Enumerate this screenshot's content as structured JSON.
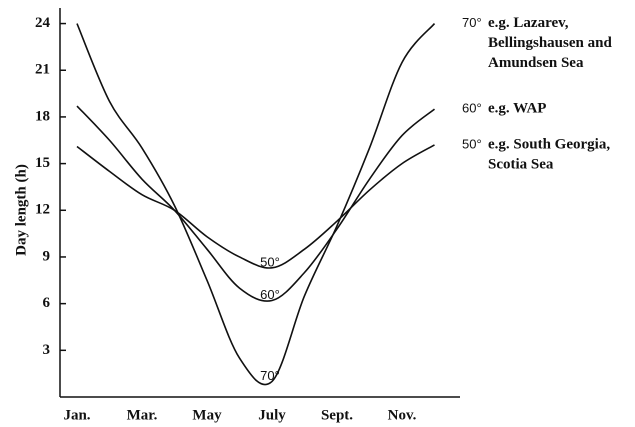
{
  "chart_data": {
    "type": "line",
    "y_label": "Day length (h)",
    "categories": [
      "Jan.",
      null,
      "Mar.",
      null,
      "May",
      null,
      "July",
      null,
      "Sept.",
      null,
      "Nov.",
      null
    ],
    "series": [
      {
        "name": "70°",
        "color": "#111111",
        "note": [
          "e.g. Lazarev,",
          "Bellingshausen and",
          "Amundsen Sea"
        ],
        "values": [
          24,
          19,
          16,
          12.3,
          7.5,
          2.5,
          1,
          6.5,
          11,
          16,
          21.5,
          24
        ]
      },
      {
        "name": "60°",
        "color": "#111111",
        "note": [
          "e.g. WAP"
        ],
        "values": [
          18.7,
          16.5,
          14,
          12,
          9.5,
          7,
          6.2,
          8,
          10.8,
          14,
          16.8,
          18.5
        ]
      },
      {
        "name": "50°",
        "color": "#111111",
        "note": [
          "e.g. South Georgia,",
          "Scotia Sea"
        ],
        "values": [
          16.1,
          14.5,
          13,
          12,
          10.3,
          9,
          8.3,
          9.5,
          11.3,
          13.3,
          15,
          16.2
        ]
      }
    ],
    "ylim": [
      0,
      25
    ],
    "yticks": [
      3,
      6,
      9,
      12,
      15,
      18,
      21,
      24
    ]
  }
}
